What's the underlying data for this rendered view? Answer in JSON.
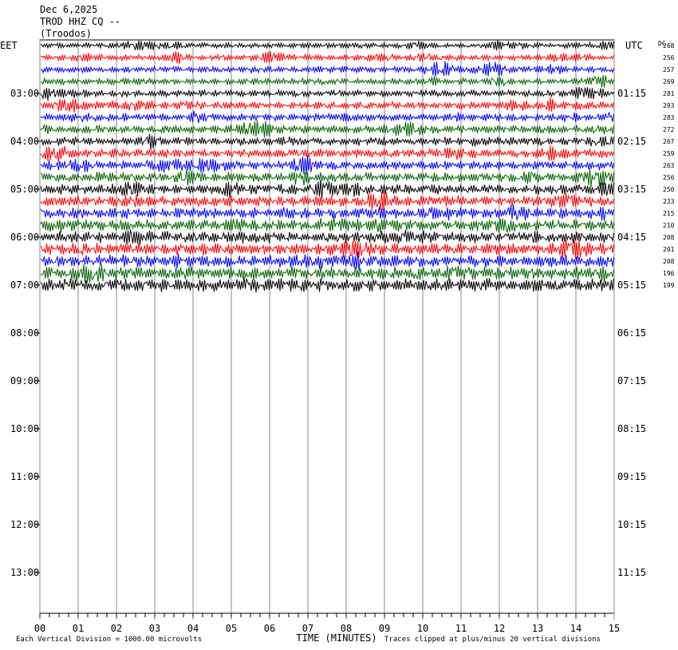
{
  "header": {
    "date": "Dec 6,2025",
    "station": "TROD HHZ CQ --",
    "location": "(Troodos)"
  },
  "chart_data": {
    "type": "helicorder",
    "left_axis_label": "EET",
    "right_axis_label": "UTC",
    "dc_label": "DC",
    "x_label": "TIME (MINUTES)",
    "xlim": [
      0,
      15
    ],
    "xticks": [
      {
        "value": 0,
        "label": "00"
      },
      {
        "value": 1,
        "label": "01"
      },
      {
        "value": 2,
        "label": "02"
      },
      {
        "value": 3,
        "label": "03"
      },
      {
        "value": 4,
        "label": "04"
      },
      {
        "value": 5,
        "label": "05"
      },
      {
        "value": 6,
        "label": "06"
      },
      {
        "value": 7,
        "label": "07"
      },
      {
        "value": 8,
        "label": "08"
      },
      {
        "value": 9,
        "label": "09"
      },
      10,
      11,
      12,
      13,
      14,
      15
    ],
    "left_ticks": [
      "03:00",
      "04:00",
      "05:00",
      "06:00",
      "07:00",
      "08:00",
      "09:00",
      "10:00",
      "11:00",
      "12:00",
      "13:00"
    ],
    "right_ticks": [
      "01:15",
      "02:15",
      "03:15",
      "04:15",
      "05:15",
      "06:15",
      "07:15",
      "08:15",
      "09:15",
      "10:15",
      "11:15"
    ],
    "dc_offsets": [
      268,
      256,
      257,
      269,
      281,
      293,
      283,
      272,
      267,
      259,
      263,
      256,
      250,
      233,
      215,
      210,
      208,
      201,
      208,
      196,
      199
    ],
    "trace_colors": [
      "#000000",
      "#ff0000",
      "#0000ff",
      "#006400"
    ],
    "footer_left": "Each Vertical Division = 1000.00 microvolts",
    "footer_right": "Traces clipped at plus/minus 20 vertical divisions"
  }
}
